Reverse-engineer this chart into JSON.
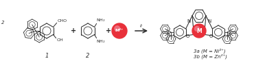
{
  "figsize": [
    3.7,
    0.89
  ],
  "dpi": 100,
  "bg_color": "white",
  "line_color": "#2a2a2a",
  "metal_color": "#e8303a",
  "metal_highlight": "#f08090",
  "label1": "1",
  "label2": "2",
  "label3a": "3a (M = Ni²⁺)",
  "label3b": "3b (M = Zn²⁺)",
  "arrow_label": "i)",
  "font_size_labels": 6.0,
  "font_size_small": 5.0,
  "font_size_text": 4.5
}
